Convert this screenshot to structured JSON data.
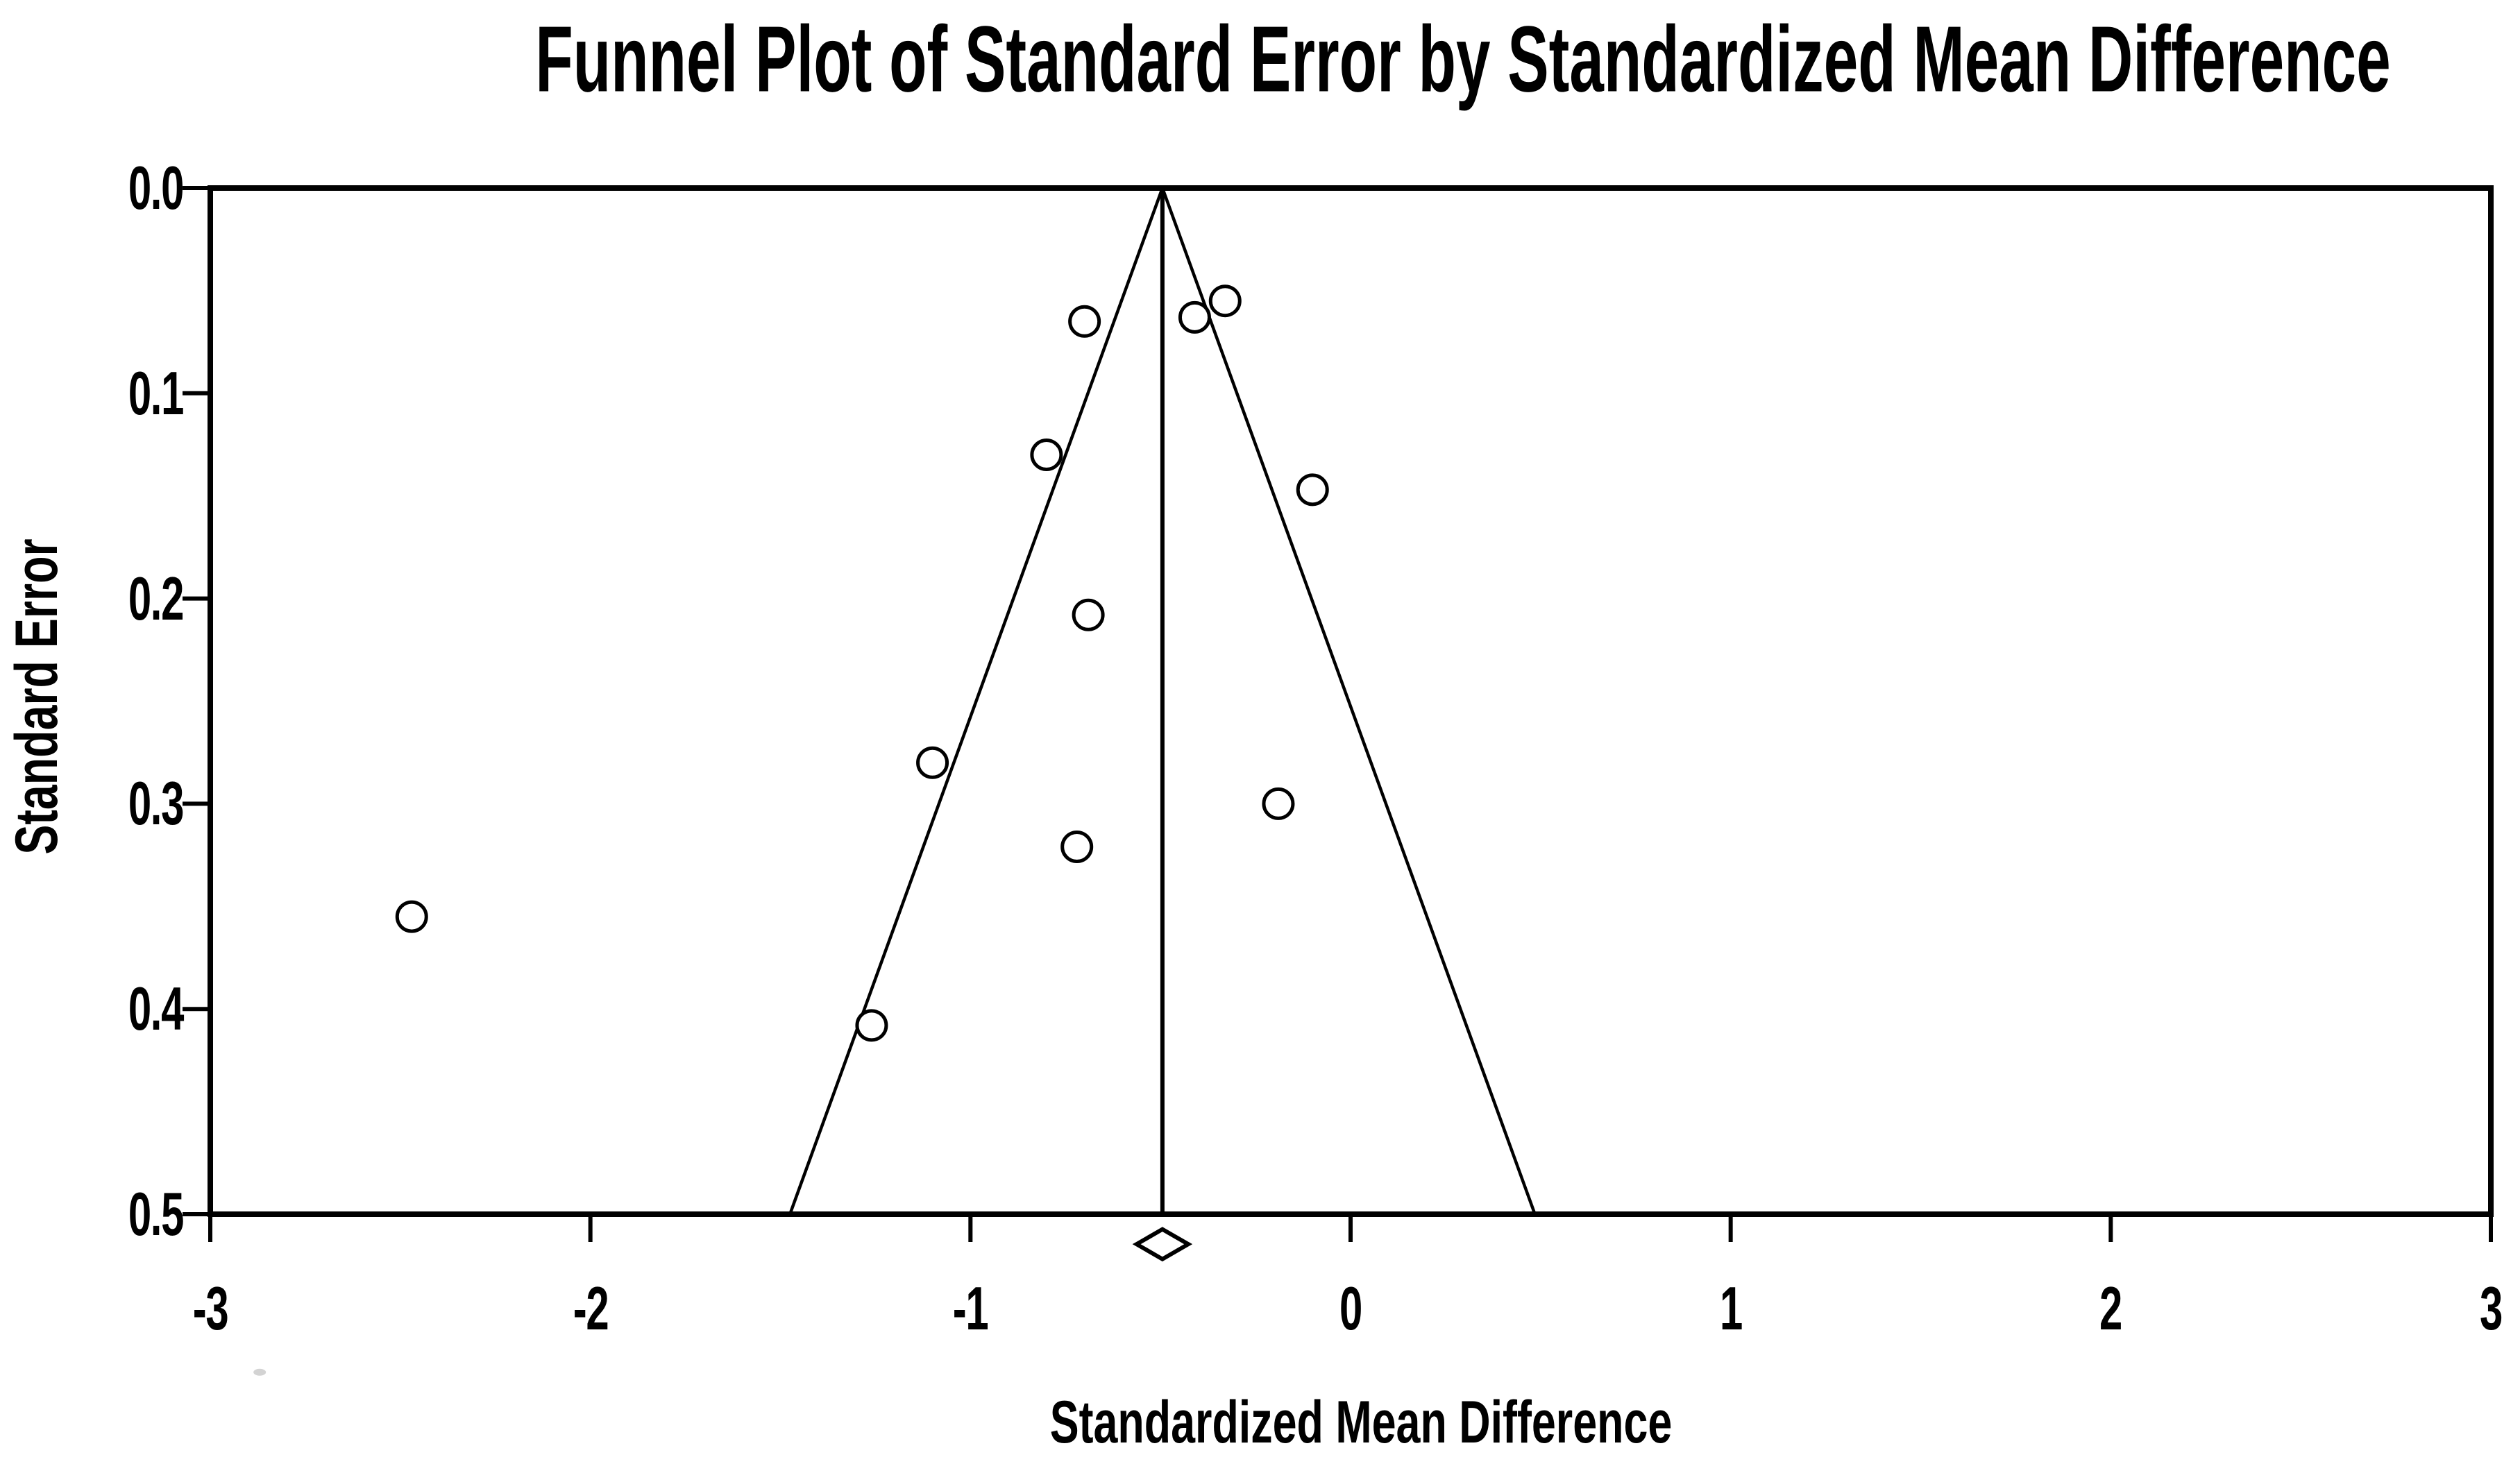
{
  "chart_data": {
    "type": "scatter",
    "subtype": "funnel-plot",
    "title": "Funnel Plot of Standard Error by Standardized Mean Difference",
    "xlabel": "Standardized Mean Difference",
    "ylabel": "Standard Error",
    "grid": false,
    "legend": "none",
    "marker": "open-circle",
    "x_axis": {
      "min": -3,
      "max": 3,
      "ticks": [
        -3,
        -2,
        -1,
        0,
        1,
        2,
        3
      ],
      "tick_labels": [
        "-3",
        "-2",
        "-1",
        "0",
        "1",
        "2",
        "3"
      ]
    },
    "y_axis": {
      "min": 0.0,
      "max": 0.5,
      "inverted": true,
      "ticks": [
        0.0,
        0.1,
        0.2,
        0.3,
        0.4,
        0.5
      ],
      "tick_labels": [
        "0.0",
        "0.1",
        "0.2",
        "0.3",
        "0.4",
        "0.5"
      ]
    },
    "points": [
      {
        "smd": -0.7,
        "se": 0.065
      },
      {
        "smd": -0.41,
        "se": 0.063
      },
      {
        "smd": -0.33,
        "se": 0.055
      },
      {
        "smd": -0.8,
        "se": 0.13
      },
      {
        "smd": -0.1,
        "se": 0.147
      },
      {
        "smd": -0.69,
        "se": 0.208
      },
      {
        "smd": -1.1,
        "se": 0.28
      },
      {
        "smd": -0.19,
        "se": 0.3
      },
      {
        "smd": -0.72,
        "se": 0.321
      },
      {
        "smd": -2.47,
        "se": 0.355
      },
      {
        "smd": -1.26,
        "se": 0.408
      }
    ],
    "funnel": {
      "center_smd": -0.495,
      "ci_multiplier": 1.96,
      "se_top": 0.0,
      "se_bottom": 0.5
    },
    "pooled_diamond": {
      "center_smd": -0.495,
      "half_width_smd": 0.068,
      "se_position": 0.5146,
      "half_height_se": 0.00727
    },
    "stray_mark": {
      "smd": -2.87,
      "se": 0.577,
      "color": "#c8c8c8"
    },
    "colors": {
      "line": "#000000",
      "marker_stroke": "#000000",
      "marker_fill": "#ffffff",
      "background": "#ffffff",
      "text": "#000000"
    }
  }
}
